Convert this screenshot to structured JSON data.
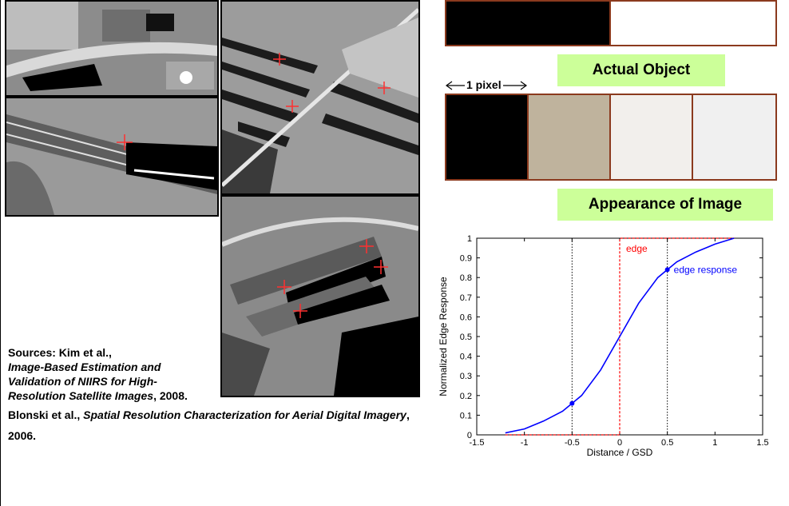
{
  "labels": {
    "actual_object": "Actual Object",
    "pixel": "1 pixel",
    "appearance": "Appearance of Image"
  },
  "sources": {
    "line1_prefix": "Sources: Kim et al.,",
    "kim_title": "Image-Based Estimation and Validation of NIIRS for High-Resolution Satellite Images",
    "kim_year": ", 2008.",
    "blonski_prefix": "Blonski et al., ",
    "blonski_title": "Spatial Resolution Characterization for Aerial Digital Imagery",
    "blonski_year": ", 2006."
  },
  "colors": {
    "strip_border": "#8b3a1e",
    "label_bg": "#ccff99",
    "edge": "#ff0000",
    "edge_response": "#0000ff",
    "actual_strip": [
      "#000000",
      "#ffffff"
    ],
    "image_strip": [
      "#000000",
      "#bfb39d",
      "#f2efec",
      "#f0f0f0"
    ]
  },
  "chart_data": {
    "type": "line",
    "xlabel": "Distance / GSD",
    "ylabel": "Normalized Edge Response",
    "xlim": [
      -1.5,
      1.5
    ],
    "ylim": [
      0,
      1
    ],
    "xticks": [
      "-1.5",
      "-1",
      "-0.5",
      "0",
      "0.5",
      "1",
      "1.5"
    ],
    "yticks": [
      "0",
      "0.1",
      "0.2",
      "0.3",
      "0.4",
      "0.5",
      "0.6",
      "0.7",
      "0.8",
      "0.9",
      "1"
    ],
    "vlines": [
      -0.5,
      0.5
    ],
    "series": [
      {
        "name": "edge",
        "x": [
          -1.2,
          0,
          0,
          1.2
        ],
        "y": [
          0,
          0,
          1,
          1
        ]
      },
      {
        "name": "edge response",
        "x": [
          -1.2,
          -1.0,
          -0.8,
          -0.6,
          -0.5,
          -0.4,
          -0.2,
          0,
          0.2,
          0.4,
          0.5,
          0.6,
          0.8,
          1.0,
          1.2
        ],
        "y": [
          0.01,
          0.03,
          0.07,
          0.12,
          0.16,
          0.2,
          0.33,
          0.5,
          0.67,
          0.8,
          0.84,
          0.88,
          0.93,
          0.97,
          1.0
        ]
      }
    ],
    "markers": [
      {
        "x": -0.5,
        "y": 0.16
      },
      {
        "x": 0.5,
        "y": 0.84
      }
    ]
  }
}
